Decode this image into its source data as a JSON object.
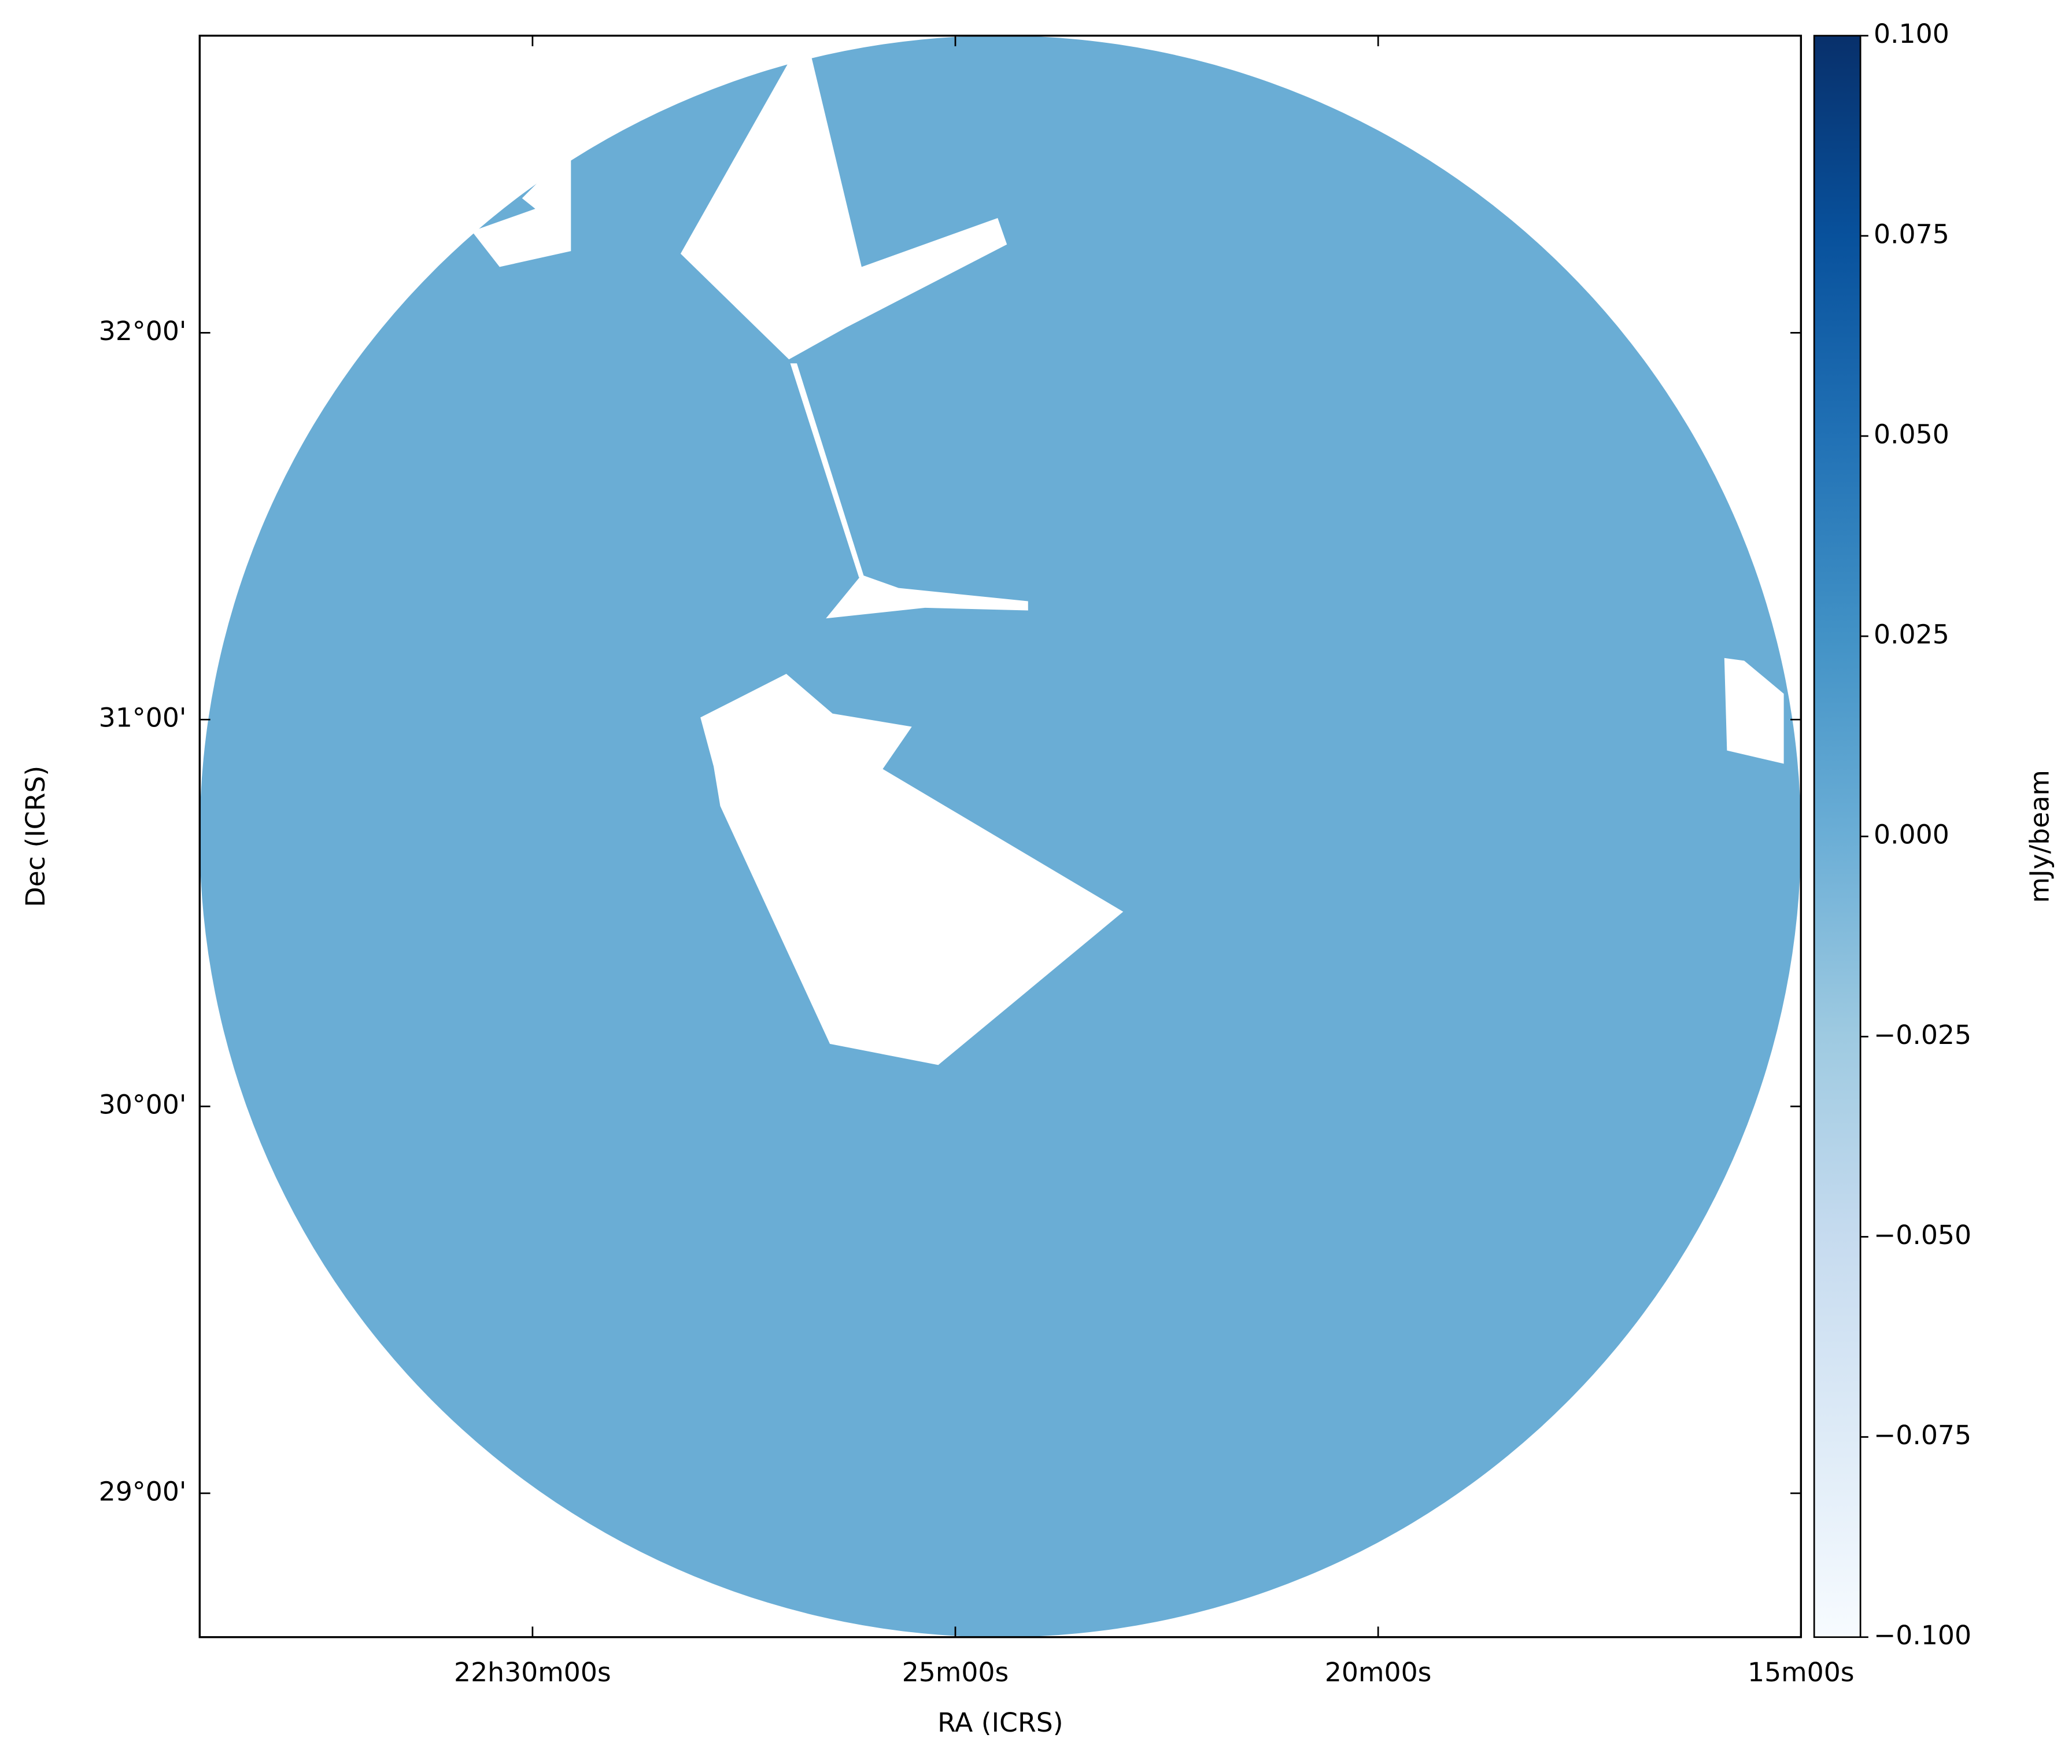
{
  "chart_data": {
    "type": "image",
    "x_label": "RA (ICRS)",
    "y_label": "Dec (ICRS)",
    "colorbar_label": "mJy/beam",
    "xlim": [
      338.484,
      333.75
    ],
    "xticks": [
      {
        "value": 337.5,
        "label": "22h30m00s"
      },
      {
        "value": 336.25,
        "label": "25m00s"
      },
      {
        "value": 335.0,
        "label": "20m00s"
      },
      {
        "value": 333.75,
        "label": "15m00s"
      }
    ],
    "ylim": [
      28.628,
      32.768
    ],
    "yticks": [
      {
        "value": 29,
        "label": "29°00'"
      },
      {
        "value": 30,
        "label": "30°00'"
      },
      {
        "value": 31,
        "label": "31°00'"
      },
      {
        "value": 32,
        "label": "32°00'"
      }
    ],
    "clim": [
      -0.1,
      0.1
    ],
    "cticks": [
      {
        "value": -0.1,
        "label": "−0.100"
      },
      {
        "value": -0.075,
        "label": "−0.075"
      },
      {
        "value": -0.05,
        "label": "−0.050"
      },
      {
        "value": -0.025,
        "label": "−0.025"
      },
      {
        "value": 0,
        "label": "0.000"
      },
      {
        "value": 0.025,
        "label": "0.025"
      },
      {
        "value": 0.05,
        "label": "0.050"
      },
      {
        "value": 0.075,
        "label": "0.075"
      },
      {
        "value": 0.1,
        "label": "0.100"
      }
    ],
    "colormap": "Blues",
    "image_color": "#6aadd5"
  }
}
